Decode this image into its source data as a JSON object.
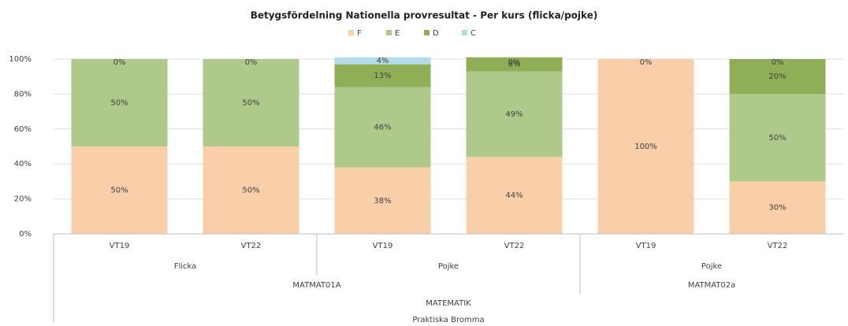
{
  "chart_data": {
    "type": "stacked_bar",
    "title": "Betygsfördelning Nationella provresultat - Per kurs (flicka/pojke)",
    "categories": [
      "VT19",
      "VT22",
      "VT19",
      "VT22",
      "VT19",
      "VT22"
    ],
    "groups": [
      [
        {
          "label": "Flicka",
          "span": 2
        },
        {
          "label": "Pojke",
          "span": 2
        },
        {
          "label": "Pojke",
          "span": 2
        }
      ],
      [
        {
          "label": "MATMAT01A",
          "span": 4
        },
        {
          "label": "MATMAT02a",
          "span": 2
        }
      ],
      [
        {
          "label": "MATEMATIK",
          "span": 6
        }
      ],
      [
        {
          "label": "Praktiska Bromma",
          "span": 6
        }
      ]
    ],
    "series": [
      {
        "name": "F",
        "color": "#f9cfa9",
        "values": [
          50,
          50,
          38,
          44,
          100,
          30
        ],
        "value_labels": [
          "50%",
          "50%",
          "38%",
          "44%",
          "100%",
          "30%"
        ]
      },
      {
        "name": "E",
        "color": "#aec98a",
        "values": [
          50,
          50,
          46,
          49,
          null,
          50
        ],
        "value_labels": [
          "50%",
          "50%",
          "46%",
          "49%",
          null,
          "50%"
        ]
      },
      {
        "name": "D",
        "color": "#8fae55",
        "values": [
          0,
          0,
          13,
          8,
          0,
          20
        ],
        "value_labels": [
          "0%",
          "0%",
          "13%",
          "8%",
          "0%",
          "20%"
        ]
      },
      {
        "name": "C",
        "color": "#b4dbe8",
        "values": [
          null,
          null,
          4,
          0,
          null,
          0
        ],
        "value_labels": [
          null,
          null,
          "4%",
          "0%",
          null,
          "0%"
        ]
      }
    ],
    "ylim": [
      0,
      100
    ],
    "yticks": [
      {
        "value": 0,
        "label": "0%"
      },
      {
        "value": 20,
        "label": "20%"
      },
      {
        "value": 40,
        "label": "40%"
      },
      {
        "value": 60,
        "label": "60%"
      },
      {
        "value": 80,
        "label": "80%"
      },
      {
        "value": 100,
        "label": "100%"
      }
    ],
    "grid": true,
    "legend": "top"
  }
}
